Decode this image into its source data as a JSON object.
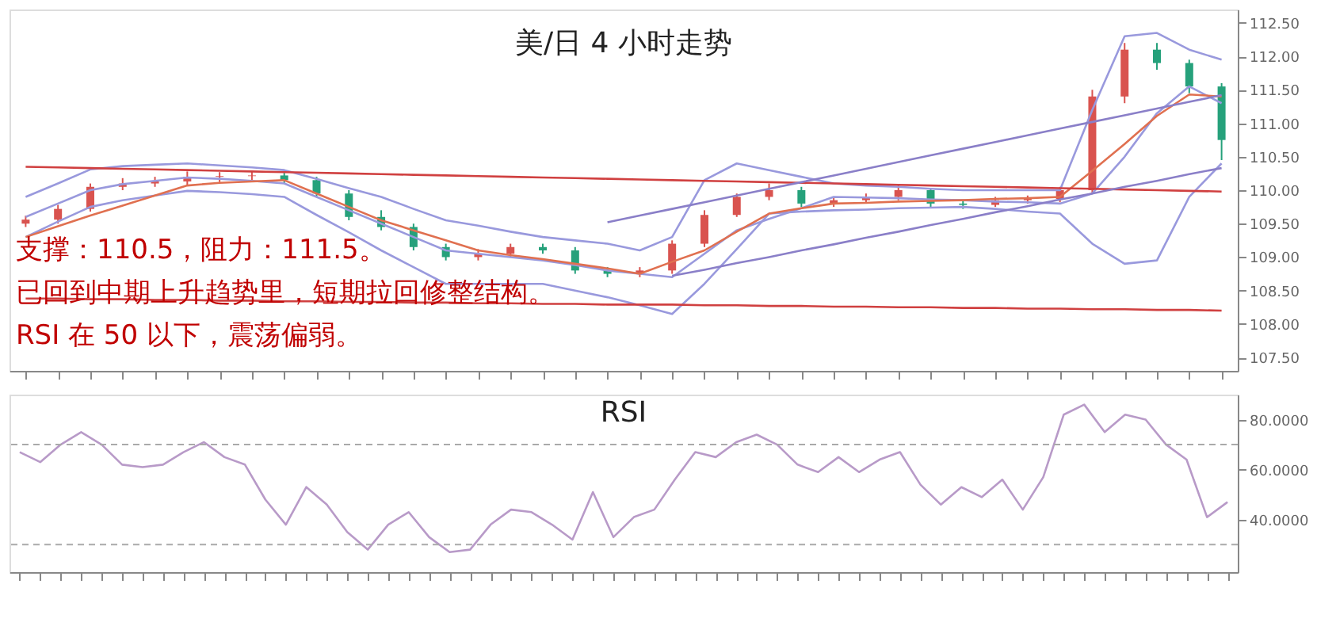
{
  "chart_data": [
    {
      "type": "candlestick",
      "title": "美/日 4 小时走势",
      "categories": [
        null,
        null,
        null,
        null,
        null,
        null,
        null,
        null,
        null,
        null,
        null,
        null,
        null,
        null,
        null,
        null,
        null,
        null,
        null,
        null,
        null,
        null,
        null,
        null,
        null,
        null,
        null,
        null,
        null,
        null,
        null,
        null,
        null,
        null,
        null,
        null,
        null,
        null
      ],
      "ohlc": [
        [
          109.5,
          109.62,
          109.45,
          109.56
        ],
        [
          109.56,
          109.78,
          109.5,
          109.72
        ],
        [
          109.72,
          110.1,
          109.68,
          110.05
        ],
        [
          110.05,
          110.18,
          110.0,
          110.1
        ],
        [
          110.1,
          110.2,
          110.05,
          110.13
        ],
        [
          110.13,
          110.28,
          110.08,
          110.2
        ],
        [
          110.2,
          110.27,
          110.12,
          110.21
        ],
        [
          110.21,
          110.28,
          110.15,
          110.22
        ],
        [
          110.22,
          110.26,
          110.1,
          110.15
        ],
        [
          110.15,
          110.2,
          109.9,
          109.95
        ],
        [
          109.95,
          110.0,
          109.55,
          109.6
        ],
        [
          109.6,
          109.7,
          109.4,
          109.45
        ],
        [
          109.45,
          109.5,
          109.1,
          109.15
        ],
        [
          109.15,
          109.2,
          108.95,
          109.0
        ],
        [
          109.0,
          109.12,
          108.95,
          109.05
        ],
        [
          109.05,
          109.2,
          109.0,
          109.15
        ],
        [
          109.15,
          109.2,
          109.05,
          109.1
        ],
        [
          109.1,
          109.15,
          108.75,
          108.8
        ],
        [
          108.8,
          108.85,
          108.7,
          108.75
        ],
        [
          108.75,
          108.85,
          108.7,
          108.8
        ],
        [
          108.8,
          109.25,
          108.75,
          109.2
        ],
        [
          109.2,
          109.7,
          109.15,
          109.63
        ],
        [
          109.63,
          109.95,
          109.6,
          109.9
        ],
        [
          109.9,
          110.1,
          109.85,
          110.0
        ],
        [
          110.0,
          110.05,
          109.75,
          109.8
        ],
        [
          109.8,
          109.9,
          109.75,
          109.85
        ],
        [
          109.85,
          109.95,
          109.8,
          109.9
        ],
        [
          109.9,
          110.08,
          109.85,
          110.0
        ],
        [
          110.0,
          110.02,
          109.75,
          109.8
        ],
        [
          109.8,
          109.85,
          109.72,
          109.78
        ],
        [
          109.78,
          109.9,
          109.75,
          109.85
        ],
        [
          109.85,
          109.92,
          109.8,
          109.87
        ],
        [
          109.87,
          110.05,
          109.82,
          110.0
        ],
        [
          110.0,
          111.5,
          109.95,
          111.4
        ],
        [
          111.4,
          112.2,
          111.3,
          112.1
        ],
        [
          112.1,
          112.2,
          111.8,
          111.9
        ],
        [
          111.9,
          111.95,
          111.45,
          111.55
        ],
        [
          111.55,
          111.6,
          110.45,
          110.75
        ]
      ],
      "colors": [
        "#d9534f",
        "#d9534f",
        "#d9534f",
        "#d9534f",
        "#d9534f",
        "#d9534f",
        "#d9534f",
        "#d9534f",
        "#26a17b",
        "#26a17b",
        "#26a17b",
        "#26a17b",
        "#26a17b",
        "#26a17b",
        "#d9534f",
        "#d9534f",
        "#26a17b",
        "#26a17b",
        "#26a17b",
        "#d9534f",
        "#d9534f",
        "#d9534f",
        "#d9534f",
        "#d9534f",
        "#26a17b",
        "#d9534f",
        "#d9534f",
        "#d9534f",
        "#26a17b",
        "#26a17b",
        "#d9534f",
        "#d9534f",
        "#d9534f",
        "#d9534f",
        "#d9534f",
        "#26a17b",
        "#26a17b",
        "#26a17b"
      ],
      "series": [
        {
          "type": "line",
          "color": "#9999dd",
          "values": [
            109.9,
            110.1,
            110.31,
            110.36,
            110.38,
            110.4,
            110.37,
            110.34,
            110.3,
            110.17,
            110.03,
            109.9,
            109.72,
            109.55,
            109.47,
            109.38,
            109.3,
            109.25,
            109.2,
            109.1,
            109.3,
            110.15,
            110.4,
            110.3,
            110.2,
            110.1,
            110.07,
            110.05,
            110.02,
            110.0,
            110.0,
            110.0,
            110.0,
            111.2,
            112.3,
            112.35,
            112.1,
            111.95
          ]
        },
        {
          "type": "line",
          "color": "#9999dd",
          "values": [
            109.3,
            109.53,
            109.75,
            109.85,
            109.92,
            109.99,
            109.97,
            109.94,
            109.9,
            109.63,
            109.37,
            109.1,
            108.85,
            108.6,
            108.6,
            108.6,
            108.6,
            108.5,
            108.4,
            108.28,
            108.15,
            108.6,
            109.12,
            109.65,
            109.68,
            109.7,
            109.71,
            109.73,
            109.74,
            109.75,
            109.72,
            109.68,
            109.65,
            109.2,
            108.9,
            108.95,
            109.9,
            110.4
          ]
        },
        {
          "type": "line",
          "color": "#9999dd",
          "values": [
            109.6,
            109.8,
            110.0,
            110.09,
            110.14,
            110.19,
            110.17,
            110.14,
            110.1,
            109.9,
            109.7,
            109.5,
            109.3,
            109.1,
            109.05,
            109.0,
            108.95,
            108.88,
            108.8,
            108.75,
            108.7,
            109.05,
            109.4,
            109.57,
            109.73,
            109.9,
            109.89,
            109.88,
            109.86,
            109.85,
            109.83,
            109.82,
            109.8,
            109.95,
            110.5,
            111.15,
            111.55,
            111.3
          ]
        },
        {
          "type": "line",
          "color": "#e07050",
          "values": [
            109.3,
            109.46,
            109.62,
            109.77,
            109.92,
            110.07,
            110.11,
            110.13,
            110.15,
            109.95,
            109.75,
            109.55,
            109.4,
            109.25,
            109.1,
            109.03,
            108.97,
            108.9,
            108.83,
            108.75,
            108.93,
            109.1,
            109.38,
            109.65,
            109.73,
            109.8,
            109.81,
            109.83,
            109.84,
            109.85,
            109.87,
            109.88,
            109.9,
            110.29,
            110.69,
            111.11,
            111.43,
            111.4
          ]
        },
        {
          "type": "line",
          "color": "#d04040",
          "values": [
            110.35,
            110.34,
            110.33,
            110.32,
            110.31,
            110.3,
            110.29,
            110.28,
            110.27,
            110.26,
            110.25,
            110.24,
            110.23,
            110.22,
            110.21,
            110.2,
            110.19,
            110.18,
            110.17,
            110.16,
            110.15,
            110.14,
            110.13,
            110.12,
            110.11,
            110.1,
            110.09,
            110.08,
            110.07,
            110.06,
            110.05,
            110.04,
            110.03,
            110.02,
            110.01,
            110.0,
            109.99,
            109.98
          ]
        },
        {
          "type": "line",
          "color": "#d04040",
          "values": [
            108.38,
            108.38,
            108.37,
            108.37,
            108.36,
            108.36,
            108.35,
            108.35,
            108.34,
            108.34,
            108.33,
            108.33,
            108.32,
            108.32,
            108.31,
            108.31,
            108.3,
            108.3,
            108.29,
            108.29,
            108.29,
            108.28,
            108.28,
            108.27,
            108.27,
            108.26,
            108.26,
            108.25,
            108.25,
            108.24,
            108.24,
            108.23,
            108.23,
            108.22,
            108.22,
            108.21,
            108.21,
            108.2
          ]
        },
        {
          "type": "line",
          "color": "#8a7fc8",
          "values": [
            null,
            null,
            null,
            null,
            null,
            null,
            null,
            null,
            null,
            null,
            null,
            null,
            null,
            null,
            null,
            null,
            null,
            null,
            109.52,
            109.62,
            109.72,
            109.82,
            109.92,
            110.02,
            110.12,
            110.22,
            110.32,
            110.42,
            110.52,
            110.62,
            110.72,
            110.82,
            110.92,
            111.02,
            111.12,
            111.22,
            111.32,
            111.42
          ]
        },
        {
          "type": "line",
          "color": "#8a7fc8",
          "values": [
            null,
            null,
            null,
            null,
            null,
            null,
            null,
            null,
            null,
            null,
            null,
            null,
            null,
            null,
            null,
            null,
            null,
            null,
            null,
            null,
            108.72,
            108.81,
            108.91,
            109.0,
            109.1,
            109.19,
            109.29,
            109.38,
            109.48,
            109.57,
            109.67,
            109.76,
            109.86,
            109.95,
            110.05,
            110.14,
            110.24,
            110.33
          ]
        }
      ],
      "ylim": [
        107.3,
        112.7
      ],
      "yticks": [
        {
          "value": 107.5,
          "label": "107.50"
        },
        {
          "value": 108,
          "label": "108.00"
        },
        {
          "value": 108.5,
          "label": "108.50"
        },
        {
          "value": 109,
          "label": "109.00"
        },
        {
          "value": 109.5,
          "label": "109.50"
        },
        {
          "value": 110,
          "label": "110.00"
        },
        {
          "value": 110.5,
          "label": "110.50"
        },
        {
          "value": 111,
          "label": "111.00"
        },
        {
          "value": 111.5,
          "label": "111.50"
        },
        {
          "value": 112,
          "label": "112.00"
        },
        {
          "value": 112.5,
          "label": "112.50"
        }
      ],
      "tick_labels": "y",
      "line_style": "solid",
      "annotations": [
        "支撑：110.5，阻力：111.5。",
        "已回到中期上升趋势里，短期拉回修整结构。",
        "RSI 在 50 以下，震荡偏弱。"
      ]
    },
    {
      "type": "line",
      "title": "RSI",
      "categories": [
        null,
        null,
        null,
        null,
        null,
        null,
        null,
        null,
        null,
        null,
        null,
        null,
        null,
        null,
        null,
        null,
        null,
        null,
        null,
        null,
        null,
        null,
        null,
        null,
        null,
        null,
        null,
        null,
        null,
        null,
        null,
        null,
        null,
        null,
        null,
        null,
        null,
        null,
        null,
        null,
        null,
        null,
        null,
        null,
        null,
        null,
        null,
        null,
        null,
        null,
        null,
        null,
        null,
        null,
        null,
        null,
        null,
        null,
        null,
        null
      ],
      "series": [
        {
          "color": "#b89ac8",
          "values": [
            67,
            63,
            70,
            75,
            70,
            62,
            61,
            62,
            67,
            71,
            65,
            62,
            48,
            38,
            53,
            46,
            35,
            28,
            38,
            43,
            33,
            27,
            28,
            38,
            44,
            43,
            38,
            32,
            51,
            33,
            41,
            44,
            56,
            67,
            65,
            71,
            74,
            70,
            62,
            59,
            65,
            59,
            64,
            67,
            54,
            46,
            53,
            49,
            56,
            44,
            57,
            82,
            86,
            75,
            82,
            80,
            70,
            64,
            41,
            47
          ]
        }
      ],
      "ylim": [
        19,
        90
      ],
      "yticks": [
        {
          "value": 40,
          "label": "40.0000"
        },
        {
          "value": 60,
          "label": "60.0000"
        },
        {
          "value": 80,
          "label": "80.0000"
        }
      ],
      "tick_labels": "y",
      "line_style": "solid",
      "ref_lines": [
        {
          "axis": "y",
          "value": 70,
          "color": "#aaaaaa",
          "line_style": "dashed"
        },
        {
          "axis": "y",
          "value": 30,
          "color": "#aaaaaa",
          "line_style": "dashed"
        }
      ]
    }
  ]
}
